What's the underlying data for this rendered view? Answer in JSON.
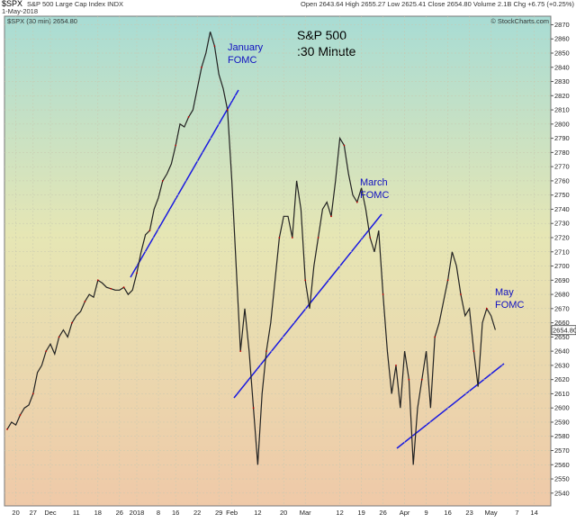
{
  "chart_data": {
    "type": "line",
    "title": "S&P 500",
    "subtitle": ":30 Minute",
    "symbol": "$SPX",
    "name": "S&P 500 Large Cap Index INDX",
    "date": "1-May-2018",
    "quote": "Open 2643.64  High 2655.27  Low 2625.41  Close 2654.80  Volume 2.1B  Chg +6.75 (+0.25%)",
    "legend": "$SPX (30 min) 2654.80",
    "last_label": "2654.80",
    "last_value": 2654.8,
    "credit": "© StockCharts.com",
    "annotations": [
      "January",
      "FOMC",
      "March",
      "FOMC",
      "May",
      "FOMC"
    ],
    "categories": [
      null,
      null,
      "20",
      null,
      null,
      null,
      "27",
      null,
      null,
      null,
      "Dec",
      null,
      null,
      null,
      null,
      null,
      "11",
      null,
      null,
      null,
      null,
      "18",
      null,
      null,
      null,
      null,
      "26",
      null,
      null,
      null,
      "2018",
      null,
      null,
      null,
      null,
      "8",
      null,
      null,
      null,
      "16",
      null,
      null,
      null,
      null,
      "22",
      null,
      null,
      null,
      null,
      "29",
      null,
      null,
      "Feb",
      null,
      null,
      null,
      null,
      null,
      "12",
      null,
      null,
      null,
      null,
      null,
      "20",
      null,
      null,
      null,
      null,
      "Mar",
      null,
      null,
      null,
      null,
      null,
      null,
      null,
      "12",
      null,
      null,
      null,
      null,
      "19",
      null,
      null,
      null,
      null,
      "26",
      null,
      null,
      null,
      null,
      "Apr",
      null,
      null,
      null,
      null,
      "9",
      null,
      null,
      null,
      null,
      "16",
      null,
      null,
      null,
      null,
      "23",
      null,
      null,
      null,
      null,
      "May",
      null,
      null,
      null,
      null,
      null,
      "7",
      null,
      null,
      null,
      "14"
    ],
    "series": [
      {
        "name": "$SPX",
        "color": "#222222",
        "values": [
          2585,
          2590,
          2588,
          2595,
          2600,
          2602,
          2610,
          2625,
          2630,
          2640,
          2645,
          2638,
          2650,
          2655,
          2650,
          2660,
          2665,
          2668,
          2675,
          2680,
          2678,
          2690,
          2688,
          2685,
          2684,
          2683,
          2683,
          2685,
          2680,
          2683,
          2695,
          2710,
          2722,
          2725,
          2740,
          2748,
          2760,
          2765,
          2772,
          2785,
          2800,
          2798,
          2805,
          2810,
          2825,
          2840,
          2850,
          2865,
          2855,
          2835,
          2825,
          2810,
          2760,
          2700,
          2640,
          2670,
          2640,
          2600,
          2560,
          2610,
          2640,
          2660,
          2690,
          2720,
          2735,
          2735,
          2720,
          2760,
          2740,
          2690,
          2670,
          2700,
          2720,
          2740,
          2745,
          2735,
          2760,
          2790,
          2785,
          2765,
          2750,
          2745,
          2755,
          2740,
          2720,
          2710,
          2725,
          2680,
          2640,
          2610,
          2630,
          2600,
          2640,
          2620,
          2560,
          2600,
          2620,
          2640,
          2600,
          2650,
          2660,
          2675,
          2690,
          2710,
          2700,
          2680,
          2665,
          2670,
          2640,
          2615,
          2660,
          2670,
          2665,
          2655,
          null,
          null,
          null,
          null,
          null,
          null,
          null,
          null,
          null
        ]
      }
    ],
    "ylim": [
      2531,
      2876
    ],
    "yticks": [
      2540,
      2550,
      2560,
      2570,
      2580,
      2590,
      2600,
      2610,
      2620,
      2630,
      2640,
      2650,
      2660,
      2670,
      2680,
      2690,
      2700,
      2710,
      2720,
      2730,
      2740,
      2750,
      2760,
      2770,
      2780,
      2790,
      2800,
      2810,
      2820,
      2830,
      2840,
      2850,
      2860,
      2870
    ],
    "grid": true
  }
}
